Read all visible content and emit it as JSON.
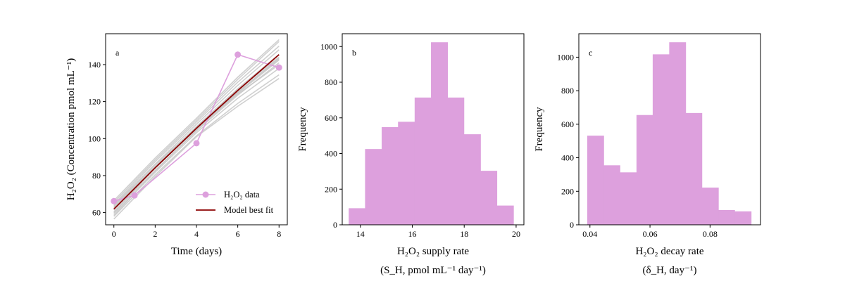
{
  "chart_data": [
    {
      "type": "line",
      "panel_label": "a",
      "xlabel": "Time (days)",
      "ylabel": "H₂O₂ (Concentration pmol mL⁻¹)",
      "xlim": [
        -0.4,
        8.4
      ],
      "ylim": [
        53.4,
        156.7
      ],
      "xticks": [
        0,
        2,
        4,
        6,
        8
      ],
      "yticks": [
        60,
        80,
        100,
        120,
        140
      ],
      "grid": false,
      "legend_position": "lower-right",
      "series": [
        {
          "name": "H₂O₂ data",
          "x": [
            0,
            1,
            4,
            6,
            8
          ],
          "y": [
            66.2,
            69.3,
            97.5,
            145.4,
            138.4
          ],
          "color": "#DDA0DD",
          "marker": "circle"
        },
        {
          "name": "Model best fit",
          "x": [
            0,
            2,
            4,
            6,
            8
          ],
          "y": [
            61.9,
            84.2,
            105.6,
            126.0,
            145.4
          ],
          "color": "#8B0000"
        }
      ],
      "ensemble": {
        "color": "#C8C8C8",
        "x": [
          0,
          2,
          4,
          6,
          8
        ],
        "curves": [
          [
            56.5,
            79.5,
            101.0,
            117.5,
            132.5
          ],
          [
            58.0,
            80.5,
            101.5,
            119.0,
            134.5
          ],
          [
            59.5,
            81.8,
            103.2,
            121.8,
            138.0
          ],
          [
            60.5,
            82.8,
            104.2,
            123.5,
            141.0
          ],
          [
            61.5,
            84.0,
            105.2,
            125.2,
            143.5
          ],
          [
            62.5,
            85.0,
            106.5,
            127.0,
            145.5
          ],
          [
            63.5,
            86.2,
            107.8,
            128.8,
            148.0
          ],
          [
            64.5,
            87.5,
            109.0,
            130.5,
            150.0
          ],
          [
            65.5,
            88.5,
            110.0,
            132.0,
            152.5
          ],
          [
            66.5,
            89.5,
            111.0,
            133.2,
            153.5
          ],
          [
            60.0,
            84.5,
            106.5,
            126.5,
            144.0
          ],
          [
            63.0,
            85.0,
            105.5,
            125.0,
            143.0
          ],
          [
            58.5,
            82.5,
            104.5,
            124.5,
            142.5
          ],
          [
            64.0,
            86.0,
            106.0,
            124.0,
            140.0
          ]
        ]
      }
    },
    {
      "type": "bar",
      "panel_label": "b",
      "xlabel": "H₂O₂ supply rate",
      "xlabel2": "(S_H, pmol mL⁻¹ day⁻¹)",
      "ylabel": "Frequency",
      "xlim": [
        13.3,
        20.3
      ],
      "ylim": [
        0,
        1072
      ],
      "xticks": [
        14,
        16,
        18,
        20
      ],
      "yticks": [
        0,
        200,
        400,
        600,
        800,
        1000
      ],
      "color": "#DDA0DD",
      "bin_edges": [
        13.55,
        14.18,
        14.82,
        15.45,
        16.09,
        16.72,
        17.36,
        17.99,
        18.63,
        19.26,
        19.9
      ],
      "values": [
        93,
        425,
        548,
        578,
        714,
        1024,
        714,
        508,
        303,
        108
      ]
    },
    {
      "type": "bar",
      "panel_label": "c",
      "xlabel": "H₂O₂ decay rate",
      "xlabel2": "(δ_H, day⁻¹)",
      "ylabel": "Frequency",
      "xlim": [
        0.0363,
        0.0968
      ],
      "ylim": [
        0,
        1140
      ],
      "xticks": [
        0.04,
        0.06,
        0.08
      ],
      "yticks": [
        0,
        200,
        400,
        600,
        800,
        1000
      ],
      "color": "#DDA0DD",
      "bin_edges": [
        0.0391,
        0.0446,
        0.05,
        0.0555,
        0.0609,
        0.0664,
        0.0719,
        0.0773,
        0.0828,
        0.0882,
        0.0937
      ],
      "values": [
        532,
        355,
        313,
        655,
        1017,
        1089,
        667,
        222,
        88,
        80
      ]
    }
  ]
}
